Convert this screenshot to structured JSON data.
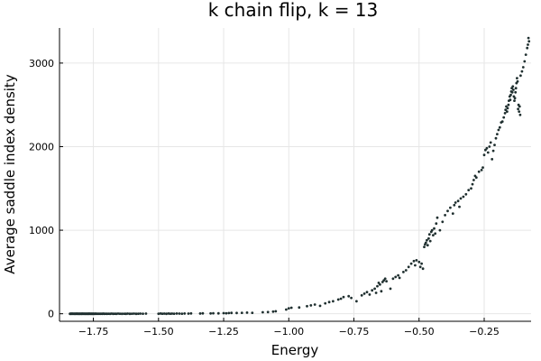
{
  "chart_data": {
    "type": "scatter",
    "title": "k chain flip, k = 13",
    "xlabel": "Energy",
    "ylabel": "Average saddle index density",
    "xlim": [
      -1.88,
      -0.07
    ],
    "ylim": [
      -90,
      3420
    ],
    "xticks": [
      -1.75,
      -1.5,
      -1.25,
      -1.0,
      -0.75,
      -0.5,
      -0.25
    ],
    "xtick_labels": [
      "−1.75",
      "−1.50",
      "−1.25",
      "−1.00",
      "−0.75",
      "−0.50",
      "−0.25"
    ],
    "yticks": [
      0,
      1000,
      2000,
      3000
    ],
    "ytick_labels": [
      "0",
      "1000",
      "2000",
      "3000"
    ],
    "grid": true,
    "legend": "none",
    "marker_color": "#1f2f2f",
    "points": [
      [
        -1.84,
        0
      ],
      [
        -1.838,
        0
      ],
      [
        -1.836,
        1
      ],
      [
        -1.834,
        0
      ],
      [
        -1.832,
        2
      ],
      [
        -1.83,
        0
      ],
      [
        -1.828,
        1
      ],
      [
        -1.826,
        0
      ],
      [
        -1.824,
        1
      ],
      [
        -1.822,
        0
      ],
      [
        -1.82,
        0
      ],
      [
        -1.818,
        1
      ],
      [
        -1.816,
        0
      ],
      [
        -1.814,
        2
      ],
      [
        -1.812,
        0
      ],
      [
        -1.81,
        1
      ],
      [
        -1.808,
        0
      ],
      [
        -1.806,
        0
      ],
      [
        -1.804,
        1
      ],
      [
        -1.802,
        0
      ],
      [
        -1.8,
        0
      ],
      [
        -1.798,
        1
      ],
      [
        -1.796,
        0
      ],
      [
        -1.794,
        0
      ],
      [
        -1.792,
        2
      ],
      [
        -1.79,
        0
      ],
      [
        -1.788,
        1
      ],
      [
        -1.786,
        0
      ],
      [
        -1.784,
        1
      ],
      [
        -1.782,
        0
      ],
      [
        -1.78,
        0
      ],
      [
        -1.778,
        1
      ],
      [
        -1.776,
        0
      ],
      [
        -1.774,
        0
      ],
      [
        -1.772,
        1
      ],
      [
        -1.77,
        0
      ],
      [
        -1.768,
        0
      ],
      [
        -1.766,
        2
      ],
      [
        -1.764,
        0
      ],
      [
        -1.762,
        1
      ],
      [
        -1.76,
        0
      ],
      [
        -1.758,
        0
      ],
      [
        -1.756,
        1
      ],
      [
        -1.754,
        0
      ],
      [
        -1.752,
        0
      ],
      [
        -1.75,
        1
      ],
      [
        -1.748,
        0
      ],
      [
        -1.745,
        0
      ],
      [
        -1.742,
        2
      ],
      [
        -1.739,
        0
      ],
      [
        -1.736,
        1
      ],
      [
        -1.732,
        0
      ],
      [
        -1.728,
        1
      ],
      [
        -1.724,
        0
      ],
      [
        -1.72,
        1
      ],
      [
        -1.716,
        0
      ],
      [
        -1.712,
        2
      ],
      [
        -1.708,
        0
      ],
      [
        -1.703,
        1
      ],
      [
        -1.698,
        0
      ],
      [
        -1.692,
        1
      ],
      [
        -1.686,
        0
      ],
      [
        -1.68,
        2
      ],
      [
        -1.674,
        0
      ],
      [
        -1.668,
        1
      ],
      [
        -1.662,
        0
      ],
      [
        -1.655,
        2
      ],
      [
        -1.648,
        1
      ],
      [
        -1.64,
        0
      ],
      [
        -1.632,
        1
      ],
      [
        -1.625,
        0
      ],
      [
        -1.618,
        2
      ],
      [
        -1.61,
        0
      ],
      [
        -1.602,
        1
      ],
      [
        -1.594,
        2
      ],
      [
        -1.586,
        0
      ],
      [
        -1.578,
        1
      ],
      [
        -1.57,
        2
      ],
      [
        -1.56,
        1
      ],
      [
        -1.548,
        2
      ],
      [
        -1.5,
        1
      ],
      [
        -1.492,
        3
      ],
      [
        -1.485,
        1
      ],
      [
        -1.478,
        2
      ],
      [
        -1.47,
        0
      ],
      [
        -1.462,
        3
      ],
      [
        -1.455,
        1
      ],
      [
        -1.448,
        2
      ],
      [
        -1.44,
        1
      ],
      [
        -1.43,
        3
      ],
      [
        -1.42,
        2
      ],
      [
        -1.41,
        1
      ],
      [
        -1.4,
        3
      ],
      [
        -1.385,
        2
      ],
      [
        -1.375,
        4
      ],
      [
        -1.34,
        3
      ],
      [
        -1.33,
        5
      ],
      [
        -1.3,
        4
      ],
      [
        -1.29,
        6
      ],
      [
        -1.27,
        5
      ],
      [
        -1.25,
        7
      ],
      [
        -1.24,
        6
      ],
      [
        -1.23,
        8
      ],
      [
        -1.22,
        10
      ],
      [
        -1.2,
        9
      ],
      [
        -1.18,
        12
      ],
      [
        -1.16,
        14
      ],
      [
        -1.14,
        12
      ],
      [
        -1.1,
        18
      ],
      [
        -1.08,
        20
      ],
      [
        -1.06,
        26
      ],
      [
        -1.05,
        30
      ],
      [
        -1.01,
        50
      ],
      [
        -1.0,
        65
      ],
      [
        -0.99,
        72
      ],
      [
        -0.96,
        75
      ],
      [
        -0.93,
        90
      ],
      [
        -0.915,
        100
      ],
      [
        -0.9,
        110
      ],
      [
        -0.88,
        95
      ],
      [
        -0.86,
        125
      ],
      [
        -0.845,
        140
      ],
      [
        -0.83,
        150
      ],
      [
        -0.81,
        170
      ],
      [
        -0.8,
        180
      ],
      [
        -0.79,
        200
      ],
      [
        -0.77,
        210
      ],
      [
        -0.76,
        190
      ],
      [
        -0.74,
        150
      ],
      [
        -0.72,
        220
      ],
      [
        -0.71,
        240
      ],
      [
        -0.7,
        260
      ],
      [
        -0.69,
        230
      ],
      [
        -0.68,
        280
      ],
      [
        -0.67,
        300
      ],
      [
        -0.665,
        250
      ],
      [
        -0.66,
        330
      ],
      [
        -0.655,
        370
      ],
      [
        -0.65,
        350
      ],
      [
        -0.645,
        270
      ],
      [
        -0.64,
        380
      ],
      [
        -0.635,
        400
      ],
      [
        -0.63,
        420
      ],
      [
        -0.625,
        390
      ],
      [
        -0.61,
        300
      ],
      [
        -0.6,
        420
      ],
      [
        -0.59,
        440
      ],
      [
        -0.58,
        460
      ],
      [
        -0.575,
        430
      ],
      [
        -0.56,
        500
      ],
      [
        -0.55,
        520
      ],
      [
        -0.54,
        560
      ],
      [
        -0.53,
        600
      ],
      [
        -0.52,
        630
      ],
      [
        -0.515,
        580
      ],
      [
        -0.51,
        640
      ],
      [
        -0.5,
        620
      ],
      [
        -0.495,
        560
      ],
      [
        -0.49,
        600
      ],
      [
        -0.485,
        540
      ],
      [
        -0.48,
        800
      ],
      [
        -0.477,
        830
      ],
      [
        -0.474,
        850
      ],
      [
        -0.47,
        880
      ],
      [
        -0.467,
        820
      ],
      [
        -0.463,
        900
      ],
      [
        -0.46,
        950
      ],
      [
        -0.457,
        870
      ],
      [
        -0.453,
        980
      ],
      [
        -0.45,
        1000
      ],
      [
        -0.446,
        940
      ],
      [
        -0.442,
        1020
      ],
      [
        -0.438,
        960
      ],
      [
        -0.434,
        1080
      ],
      [
        -0.43,
        1150
      ],
      [
        -0.42,
        1000
      ],
      [
        -0.41,
        1100
      ],
      [
        -0.4,
        1180
      ],
      [
        -0.39,
        1230
      ],
      [
        -0.38,
        1270
      ],
      [
        -0.37,
        1200
      ],
      [
        -0.365,
        1300
      ],
      [
        -0.36,
        1330
      ],
      [
        -0.35,
        1350
      ],
      [
        -0.345,
        1280
      ],
      [
        -0.34,
        1380
      ],
      [
        -0.33,
        1400
      ],
      [
        -0.32,
        1430
      ],
      [
        -0.31,
        1480
      ],
      [
        -0.3,
        1500
      ],
      [
        -0.295,
        1550
      ],
      [
        -0.29,
        1600
      ],
      [
        -0.285,
        1650
      ],
      [
        -0.28,
        1630
      ],
      [
        -0.27,
        1700
      ],
      [
        -0.26,
        1720
      ],
      [
        -0.255,
        1750
      ],
      [
        -0.25,
        1900
      ],
      [
        -0.245,
        1960
      ],
      [
        -0.24,
        1980
      ],
      [
        -0.235,
        1930
      ],
      [
        -0.23,
        2000
      ],
      [
        -0.225,
        2050
      ],
      [
        -0.22,
        1850
      ],
      [
        -0.215,
        1950
      ],
      [
        -0.21,
        2020
      ],
      [
        -0.205,
        2100
      ],
      [
        -0.2,
        2150
      ],
      [
        -0.195,
        2200
      ],
      [
        -0.19,
        2230
      ],
      [
        -0.185,
        2290
      ],
      [
        -0.18,
        2300
      ],
      [
        -0.175,
        2350
      ],
      [
        -0.17,
        2400
      ],
      [
        -0.168,
        2440
      ],
      [
        -0.165,
        2480
      ],
      [
        -0.162,
        2420
      ],
      [
        -0.16,
        2460
      ],
      [
        -0.157,
        2500
      ],
      [
        -0.155,
        2550
      ],
      [
        -0.152,
        2600
      ],
      [
        -0.15,
        2560
      ],
      [
        -0.148,
        2620
      ],
      [
        -0.146,
        2660
      ],
      [
        -0.144,
        2700
      ],
      [
        -0.142,
        2650
      ],
      [
        -0.14,
        2720
      ],
      [
        -0.138,
        2680
      ],
      [
        -0.136,
        2600
      ],
      [
        -0.134,
        2550
      ],
      [
        -0.132,
        2580
      ],
      [
        -0.13,
        2650
      ],
      [
        -0.128,
        2700
      ],
      [
        -0.126,
        2760
      ],
      [
        -0.124,
        2820
      ],
      [
        -0.122,
        2780
      ],
      [
        -0.12,
        2450
      ],
      [
        -0.118,
        2500
      ],
      [
        -0.116,
        2420
      ],
      [
        -0.114,
        2480
      ],
      [
        -0.112,
        2380
      ],
      [
        -0.11,
        2850
      ],
      [
        -0.105,
        2900
      ],
      [
        -0.1,
        2950
      ],
      [
        -0.095,
        3020
      ],
      [
        -0.09,
        3100
      ],
      [
        -0.085,
        3180
      ],
      [
        -0.082,
        3220
      ],
      [
        -0.08,
        3300
      ],
      [
        -0.078,
        3260
      ]
    ]
  }
}
